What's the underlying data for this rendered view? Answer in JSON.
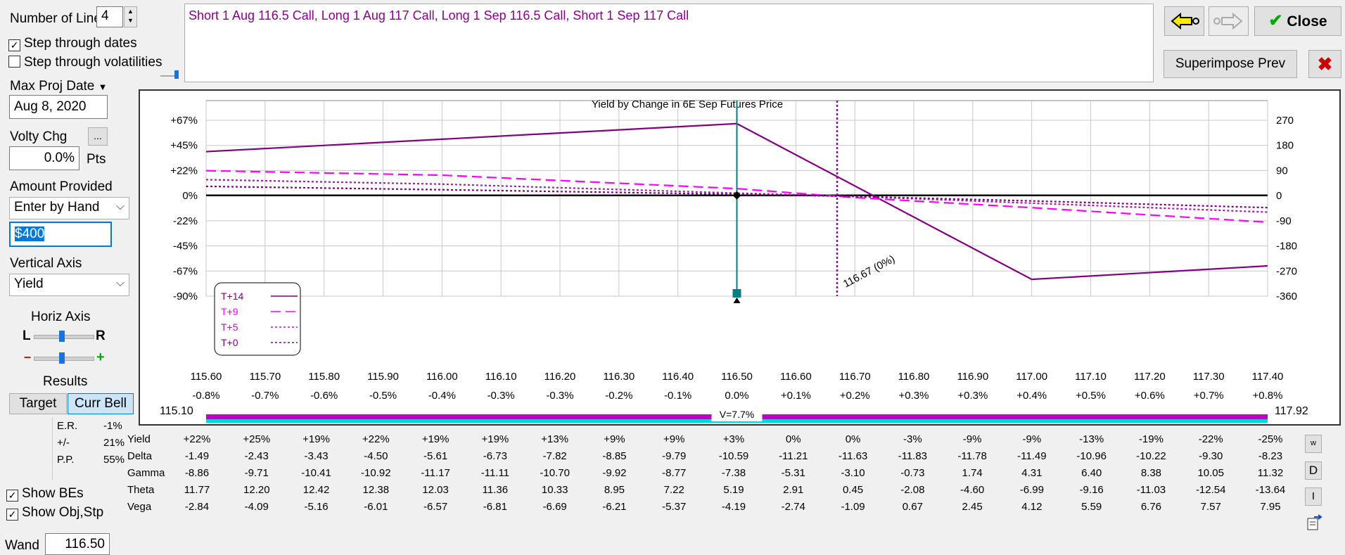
{
  "controls": {
    "num_lines_label": "Number of Lines",
    "num_lines_value": "4",
    "step_dates_label": "Step through dates",
    "step_dates_checked": true,
    "step_vols_label": "Step through volatilities",
    "step_vols_checked": false,
    "max_proj_label": "Max Proj Date",
    "max_proj_value": "Aug 8, 2020",
    "volty_label": "Volty Chg",
    "volty_btn": "...",
    "volty_value": "0.0%",
    "volty_unit": "Pts",
    "amount_label": "Amount Provided",
    "amount_mode": "Enter by Hand",
    "amount_value": "$400",
    "vaxis_label": "Vertical Axis",
    "vaxis_value": "Yield",
    "haxis_label": "Horiz Axis",
    "l_label": "L",
    "r_label": "R",
    "minus_label": "–",
    "plus_label": "+",
    "results_label": "Results",
    "target_btn": "Target",
    "currbell_btn": "Curr Bell",
    "er_label": "E.R.",
    "er_value": "-1%",
    "pm_label": "+/-",
    "pm_value": "21%",
    "pp_label": "P.P.",
    "pp_value": "55%",
    "show_bes_label": "Show BEs",
    "show_obj_label": "Show Obj,Stp",
    "wand_label": "Wand",
    "wand_value": "116.50"
  },
  "description": "Short 1 Aug 116.5 Call, Long 1 Aug 117 Call, Long 1 Sep 116.5 Call, Short 1 Sep 117 Call",
  "top_buttons": {
    "close": "Close",
    "superimpose": "Superimpose Prev"
  },
  "chart_data": {
    "type": "line",
    "title": "Yield by Change in 6E Sep Futures Price",
    "x": [
      115.6,
      116.5,
      117.0,
      117.4
    ],
    "x_tick_labels": [
      "115.60",
      "115.70",
      "115.80",
      "115.90",
      "116.00",
      "116.10",
      "116.20",
      "116.30",
      "116.40",
      "116.50",
      "116.60",
      "116.70",
      "116.80",
      "116.90",
      "117.00",
      "117.10",
      "117.20",
      "117.30",
      "117.40"
    ],
    "x_pct_labels": [
      "-0.8%",
      "-0.7%",
      "-0.6%",
      "-0.5%",
      "-0.4%",
      "-0.3%",
      "-0.3%",
      "-0.2%",
      "-0.1%",
      "0.0%",
      "+0.1%",
      "+0.2%",
      "+0.3%",
      "+0.3%",
      "+0.4%",
      "+0.5%",
      "+0.6%",
      "+0.7%",
      "+0.8%"
    ],
    "y_left_ticks": [
      "+67%",
      "+45%",
      "+22%",
      "0%",
      "-22%",
      "-45%",
      "-67%",
      "-90%"
    ],
    "y_right_ticks": [
      "270",
      "180",
      "90",
      "0",
      "-90",
      "-180",
      "-270",
      "-360"
    ],
    "ylim": [
      -90,
      67
    ],
    "xlim": [
      115.6,
      117.4
    ],
    "grid": true,
    "legend_placement": "bottom-left",
    "series": [
      {
        "name": "T+14",
        "color": "#800080",
        "style": "solid",
        "x": [
          115.6,
          116.5,
          117.0,
          117.4
        ],
        "y": [
          39,
          64,
          -75,
          -63
        ]
      },
      {
        "name": "T+9",
        "color": "#ff00ff",
        "style": "dash",
        "x": [
          115.6,
          116.0,
          116.5,
          116.7,
          117.0,
          117.4
        ],
        "y": [
          22,
          18,
          6,
          -2,
          -11,
          -24
        ]
      },
      {
        "name": "T+5",
        "color": "#a020a0",
        "style": "dot",
        "x": [
          115.6,
          116.0,
          116.5,
          116.7,
          117.0,
          117.4
        ],
        "y": [
          14,
          10,
          2,
          -1,
          -7,
          -15
        ]
      },
      {
        "name": "T+0",
        "color": "#800080",
        "style": "dot",
        "x": [
          115.6,
          116.0,
          116.5,
          116.7,
          117.0,
          117.4
        ],
        "y": [
          8,
          5,
          1,
          -1,
          -5,
          -11
        ]
      }
    ],
    "breakeven_x": 116.67,
    "breakeven_label": "116.67 (0%)",
    "current_x": 116.5,
    "range_low": "115.10",
    "range_high": "117.92",
    "volatility_label": "V=7.7%"
  },
  "greeks": {
    "rows": [
      {
        "label": "Yield",
        "values": [
          "+22%",
          "+25%",
          "+19%",
          "+22%",
          "+19%",
          "+19%",
          "+13%",
          "+9%",
          "+9%",
          "+3%",
          "0%",
          "0%",
          "-3%",
          "-9%",
          "-9%",
          "-13%",
          "-19%",
          "-22%",
          "-25%"
        ]
      },
      {
        "label": "Delta",
        "values": [
          "-1.49",
          "-2.43",
          "-3.43",
          "-4.50",
          "-5.61",
          "-6.73",
          "-7.82",
          "-8.85",
          "-9.79",
          "-10.59",
          "-11.21",
          "-11.63",
          "-11.83",
          "-11.78",
          "-11.49",
          "-10.96",
          "-10.22",
          "-9.30",
          "-8.23"
        ]
      },
      {
        "label": "Gamma",
        "values": [
          "-8.86",
          "-9.71",
          "-10.41",
          "-10.92",
          "-11.17",
          "-11.11",
          "-10.70",
          "-9.92",
          "-8.77",
          "-7.38",
          "-5.31",
          "-3.10",
          "-0.73",
          "1.74",
          "4.31",
          "6.40",
          "8.38",
          "10.05",
          "11.32"
        ]
      },
      {
        "label": "Theta",
        "values": [
          "11.77",
          "12.20",
          "12.42",
          "12.38",
          "12.03",
          "11.36",
          "10.33",
          "8.95",
          "7.22",
          "5.19",
          "2.91",
          "0.45",
          "-2.08",
          "-4.60",
          "-6.99",
          "-9.16",
          "-11.03",
          "-12.54",
          "-13.64"
        ]
      },
      {
        "label": "Vega",
        "values": [
          "-2.84",
          "-4.09",
          "-5.16",
          "-6.01",
          "-6.57",
          "-6.81",
          "-6.69",
          "-6.21",
          "-5.37",
          "-4.19",
          "-2.74",
          "-1.09",
          "0.67",
          "2.45",
          "4.12",
          "5.59",
          "6.76",
          "7.57",
          "7.95"
        ]
      }
    ],
    "side_buttons": [
      "w",
      "D",
      "I"
    ]
  }
}
